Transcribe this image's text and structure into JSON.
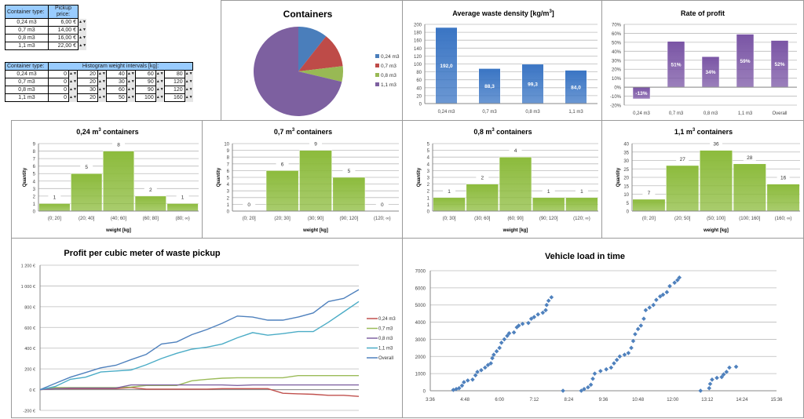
{
  "price_table": {
    "header": [
      "Container type:",
      "Pickup price:"
    ],
    "rows": [
      [
        "0,24 m3",
        "6,00 €"
      ],
      [
        "0,7 m3",
        "14,00 €"
      ],
      [
        "0,8 m3",
        "16,00 €"
      ],
      [
        "1,1 m3",
        "22,00 €"
      ]
    ]
  },
  "interval_table": {
    "header": [
      "Container type:",
      "Histogram weight intervals [kg]:"
    ],
    "rows": [
      [
        "0,24 m3",
        "0",
        "20",
        "40",
        "60",
        "80"
      ],
      [
        "0,7 m3",
        "0",
        "20",
        "30",
        "90",
        "120"
      ],
      [
        "0,8 m3",
        "0",
        "30",
        "60",
        "90",
        "120"
      ],
      [
        "1,1 m3",
        "0",
        "20",
        "50",
        "100",
        "160"
      ]
    ]
  },
  "spinner_icon": "up-down-arrows",
  "chart_data": [
    {
      "id": "pie",
      "type": "pie",
      "title": "Containers",
      "categories": [
        "0,24 m3",
        "0,7 m3",
        "0,8 m3",
        "1,1 m3"
      ],
      "values": [
        17,
        20,
        9,
        114
      ],
      "colors": [
        "#4a7ebb",
        "#be4b48",
        "#98b954",
        "#7d60a0"
      ],
      "legend": "right"
    },
    {
      "id": "density",
      "type": "bar",
      "title": "Average waste density [kg/m",
      "title_sup": "3",
      "title_end": "]",
      "categories": [
        "0,24 m3",
        "0,7 m3",
        "0,8 m3",
        "1,1 m3"
      ],
      "values": [
        192.0,
        88.3,
        99.3,
        84.0
      ],
      "labels": [
        "192,0",
        "88,3",
        "99,3",
        "84,0"
      ],
      "ylim": [
        0,
        200
      ],
      "yticks": [
        "0",
        "20",
        "40",
        "60",
        "80",
        "100",
        "120",
        "140",
        "160",
        "180",
        "200"
      ],
      "color": "#3a75c4",
      "grid": true
    },
    {
      "id": "rate",
      "type": "bar",
      "title": "Rate of profit",
      "categories": [
        "0,24 m3",
        "0,7 m3",
        "0,8 m3",
        "1,1 m3",
        "Overall"
      ],
      "values": [
        -13,
        51,
        34,
        59,
        52
      ],
      "labels": [
        "-13%",
        "51%",
        "34%",
        "59%",
        "52%"
      ],
      "ylim": [
        -20,
        70
      ],
      "yticks": [
        "-20%",
        "-10%",
        "0%",
        "10%",
        "20%",
        "30%",
        "40%",
        "50%",
        "60%",
        "70%"
      ],
      "color": "#7a55a5",
      "grid": true
    },
    {
      "id": "h024",
      "type": "bar",
      "title": "0,24 m",
      "title_sup": "3",
      "title_end": " containers",
      "xlabel": "weight [kg]",
      "ylabel": "Quantity",
      "categories": [
        "(0; 20]",
        "(20; 40]",
        "(40; 60]",
        "(60; 80]",
        "(80; ∞)"
      ],
      "values": [
        1,
        5,
        8,
        2,
        1
      ],
      "labels": [
        "1",
        "5",
        "8",
        "2",
        "1"
      ],
      "ylim": [
        0,
        9
      ],
      "yticks": [
        "0",
        "1",
        "2",
        "3",
        "4",
        "5",
        "6",
        "7",
        "8",
        "9"
      ],
      "color": "#8cbb3c",
      "grid": true
    },
    {
      "id": "h07",
      "type": "bar",
      "title": "0,7 m",
      "title_sup": "3",
      "title_end": " containers",
      "xlabel": "weight [kg]",
      "ylabel": "Quantity",
      "categories": [
        "(0; 20]",
        "(20; 30]",
        "(30; 90]",
        "(90; 120]",
        "(120; ∞)"
      ],
      "values": [
        0,
        6,
        9,
        5,
        0
      ],
      "labels": [
        "0",
        "6",
        "9",
        "5",
        "0"
      ],
      "ylim": [
        0,
        10
      ],
      "yticks": [
        "0",
        "1",
        "2",
        "3",
        "4",
        "5",
        "6",
        "7",
        "8",
        "9",
        "10"
      ],
      "color": "#8cbb3c",
      "grid": true
    },
    {
      "id": "h08",
      "type": "bar",
      "title": "0,8 m",
      "title_sup": "3",
      "title_end": " containers",
      "xlabel": "weight [kg]",
      "ylabel": "Quantity",
      "categories": [
        "(0; 30]",
        "(30; 60]",
        "(60; 90]",
        "(90; 120]",
        "(120; ∞)"
      ],
      "values": [
        1,
        2,
        4,
        1,
        1
      ],
      "labels": [
        "1",
        "2",
        "4",
        "1",
        "1"
      ],
      "ylim": [
        0,
        5
      ],
      "yticks": [
        "0",
        "1",
        "1",
        "2",
        "2",
        "3",
        "3",
        "4",
        "4",
        "5",
        "5"
      ],
      "color": "#8cbb3c",
      "grid": true
    },
    {
      "id": "h11",
      "type": "bar",
      "title": "1,1 m",
      "title_sup": "3",
      "title_end": " containers",
      "xlabel": "weight [kg]",
      "ylabel": "Quantity",
      "categories": [
        "(0; 20]",
        "(20; 50]",
        "(50; 100]",
        "(100; 160]",
        "(160; ∞)"
      ],
      "values": [
        7,
        27,
        36,
        28,
        16
      ],
      "labels": [
        "7",
        "27",
        "36",
        "28",
        "16"
      ],
      "ylim": [
        0,
        40
      ],
      "yticks": [
        "0",
        "5",
        "10",
        "15",
        "20",
        "25",
        "30",
        "35",
        "40"
      ],
      "color": "#8cbb3c",
      "grid": true
    },
    {
      "id": "profit",
      "type": "line",
      "title": "Profit per cubic meter of waste pickup",
      "ylim": [
        -200,
        1200
      ],
      "yticks": [
        "-200 €",
        "0 €",
        "200 €",
        "400 €",
        "600 €",
        "800 €",
        "1 000 €",
        "1 200 €"
      ],
      "legend": "right",
      "grid": true,
      "series": [
        {
          "name": "0,24 m3",
          "color": "#c0504d",
          "values": [
            0,
            10,
            10,
            10,
            10,
            10,
            20,
            5,
            5,
            5,
            5,
            5,
            10,
            10,
            10,
            10,
            -35,
            -40,
            -45,
            -55,
            -55,
            -65
          ]
        },
        {
          "name": "0,7 m3",
          "color": "#9bbb59",
          "values": [
            0,
            20,
            20,
            20,
            20,
            20,
            25,
            40,
            40,
            40,
            85,
            100,
            110,
            115,
            115,
            115,
            115,
            135,
            135,
            135,
            135,
            135
          ]
        },
        {
          "name": "0,8 m3",
          "color": "#8064a2",
          "values": [
            0,
            10,
            15,
            15,
            15,
            15,
            45,
            45,
            45,
            45,
            45,
            45,
            45,
            40,
            45,
            45,
            45,
            45,
            45,
            45,
            45,
            45
          ]
        },
        {
          "name": "1,1 m3",
          "color": "#4bacc6",
          "values": [
            0,
            30,
            100,
            120,
            170,
            180,
            190,
            240,
            300,
            350,
            390,
            410,
            440,
            500,
            550,
            525,
            540,
            560,
            560,
            650,
            750,
            850
          ]
        },
        {
          "name": "Overall",
          "color": "#4f81bd",
          "values": [
            0,
            60,
            120,
            165,
            210,
            235,
            290,
            340,
            440,
            460,
            530,
            580,
            640,
            710,
            700,
            670,
            670,
            700,
            740,
            850,
            880,
            965
          ]
        }
      ]
    },
    {
      "id": "load",
      "type": "scatter",
      "title": "Vehicle load in time",
      "ylim": [
        0,
        7000
      ],
      "yticks": [
        "0",
        "1000",
        "2000",
        "3000",
        "4000",
        "5000",
        "6000",
        "7000"
      ],
      "xlim": [
        "3:36",
        "15:36"
      ],
      "xticks": [
        "3:36",
        "4:48",
        "6:00",
        "7:12",
        "8:24",
        "9:36",
        "10:48",
        "12:00",
        "13:12",
        "14:24",
        "15:36"
      ],
      "color": "#4f81bd",
      "grid": true,
      "points": [
        [
          "4:24",
          50
        ],
        [
          "4:30",
          100
        ],
        [
          "4:36",
          150
        ],
        [
          "4:42",
          300
        ],
        [
          "4:46",
          500
        ],
        [
          "4:54",
          600
        ],
        [
          "5:04",
          650
        ],
        [
          "5:10",
          900
        ],
        [
          "5:14",
          1100
        ],
        [
          "5:22",
          1200
        ],
        [
          "5:30",
          1350
        ],
        [
          "5:36",
          1500
        ],
        [
          "5:42",
          1600
        ],
        [
          "5:45",
          1900
        ],
        [
          "5:48",
          2100
        ],
        [
          "5:54",
          2300
        ],
        [
          "6:00",
          2500
        ],
        [
          "6:04",
          2800
        ],
        [
          "6:10",
          3000
        ],
        [
          "6:16",
          3200
        ],
        [
          "6:20",
          3350
        ],
        [
          "6:30",
          3400
        ],
        [
          "6:36",
          3700
        ],
        [
          "6:40",
          3800
        ],
        [
          "6:48",
          3900
        ],
        [
          "7:00",
          3950
        ],
        [
          "7:06",
          4200
        ],
        [
          "7:12",
          4300
        ],
        [
          "7:20",
          4450
        ],
        [
          "7:30",
          4550
        ],
        [
          "7:36",
          4700
        ],
        [
          "7:38",
          5000
        ],
        [
          "7:42",
          5250
        ],
        [
          "7:48",
          5450
        ],
        [
          "8:12",
          0
        ],
        [
          "8:50",
          0
        ],
        [
          "8:56",
          100
        ],
        [
          "9:04",
          200
        ],
        [
          "9:10",
          350
        ],
        [
          "9:14",
          700
        ],
        [
          "9:18",
          1000
        ],
        [
          "9:30",
          1150
        ],
        [
          "9:42",
          1250
        ],
        [
          "9:52",
          1350
        ],
        [
          "9:58",
          1600
        ],
        [
          "10:04",
          1800
        ],
        [
          "10:10",
          2000
        ],
        [
          "10:20",
          2100
        ],
        [
          "10:28",
          2200
        ],
        [
          "10:34",
          2500
        ],
        [
          "10:38",
          2900
        ],
        [
          "10:42",
          3300
        ],
        [
          "10:48",
          3600
        ],
        [
          "10:54",
          3800
        ],
        [
          "11:00",
          4200
        ],
        [
          "11:04",
          4700
        ],
        [
          "11:12",
          4850
        ],
        [
          "11:20",
          5000
        ],
        [
          "11:26",
          5300
        ],
        [
          "11:34",
          5500
        ],
        [
          "11:40",
          5600
        ],
        [
          "11:48",
          5750
        ],
        [
          "11:54",
          6100
        ],
        [
          "12:04",
          6300
        ],
        [
          "12:10",
          6450
        ],
        [
          "12:14",
          6600
        ],
        [
          "12:58",
          0
        ],
        [
          "13:16",
          150
        ],
        [
          "13:18",
          400
        ],
        [
          "13:22",
          650
        ],
        [
          "13:32",
          750
        ],
        [
          "13:42",
          800
        ],
        [
          "13:46",
          950
        ],
        [
          "13:52",
          1100
        ],
        [
          "13:58",
          1350
        ],
        [
          "14:12",
          1400
        ]
      ]
    }
  ]
}
